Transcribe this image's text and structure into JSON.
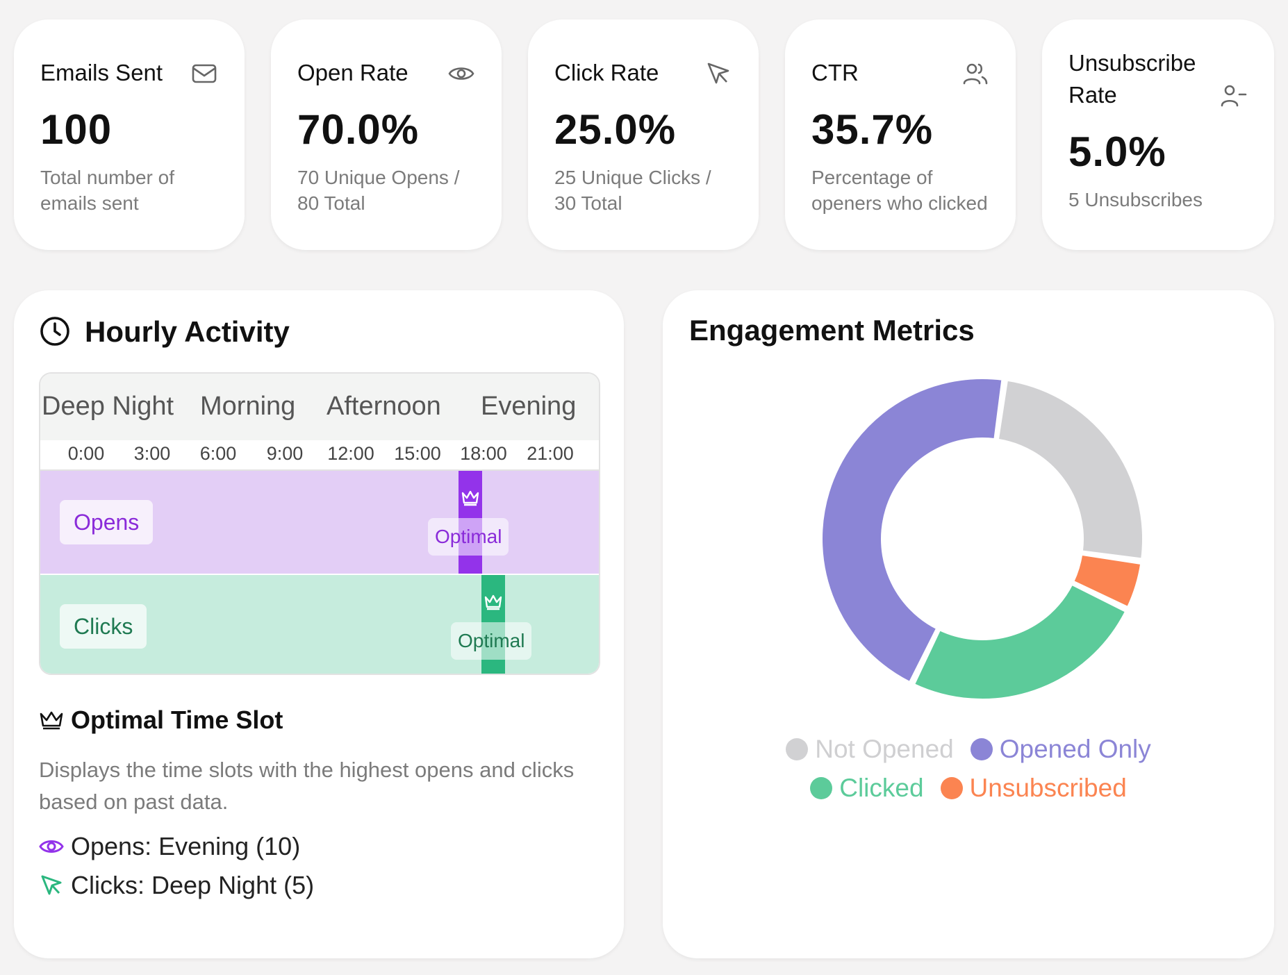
{
  "stats": [
    {
      "label": "Emails Sent",
      "icon": "mail-icon",
      "value": "100",
      "desc": "Total number of emails sent"
    },
    {
      "label": "Open Rate",
      "icon": "eye-icon",
      "value": "70.0%",
      "desc": "70 Unique Opens / 80 Total"
    },
    {
      "label": "Click Rate",
      "icon": "cursor-icon",
      "value": "25.0%",
      "desc": "25 Unique Clicks / 30 Total"
    },
    {
      "label": "CTR",
      "icon": "users-icon",
      "value": "35.7%",
      "desc": "Percentage of openers who clicked"
    },
    {
      "label": "Unsubscribe Rate",
      "icon": "user-minus-icon",
      "value": "5.0%",
      "desc": "5 Unsubscribes"
    }
  ],
  "hourly": {
    "title": "Hourly Activity",
    "periods": [
      "Deep Night",
      "Morning",
      "Afternoon",
      "Evening"
    ],
    "hours": [
      "0:00",
      "3:00",
      "6:00",
      "9:00",
      "12:00",
      "15:00",
      "18:00",
      "21:00"
    ],
    "opens_label": "Opens",
    "clicks_label": "Clicks",
    "optimal_label": "Optimal",
    "optimal_title": "Optimal Time Slot",
    "optimal_desc": "Displays the time slots with the highest opens and clicks based on past data.",
    "opens_line": "Opens: Evening (10)",
    "clicks_line": "Clicks: Deep Night (5)"
  },
  "engagement": {
    "title": "Engagement Metrics"
  },
  "chart_data": {
    "type": "pie",
    "title": "Engagement Metrics",
    "categories": [
      "Not Opened",
      "Opened Only",
      "Clicked",
      "Unsubscribed"
    ],
    "values": [
      25,
      45,
      25,
      5
    ],
    "colors": [
      "#d1d1d3",
      "#8b85d6",
      "#5ccb9a",
      "#fb8451"
    ],
    "legend": "bottom"
  },
  "colors": {
    "opens": "#8a2bd9",
    "clicks": "#1f7a52",
    "opens_bar": "#9333ea",
    "clicks_bar": "#2bb77f"
  }
}
